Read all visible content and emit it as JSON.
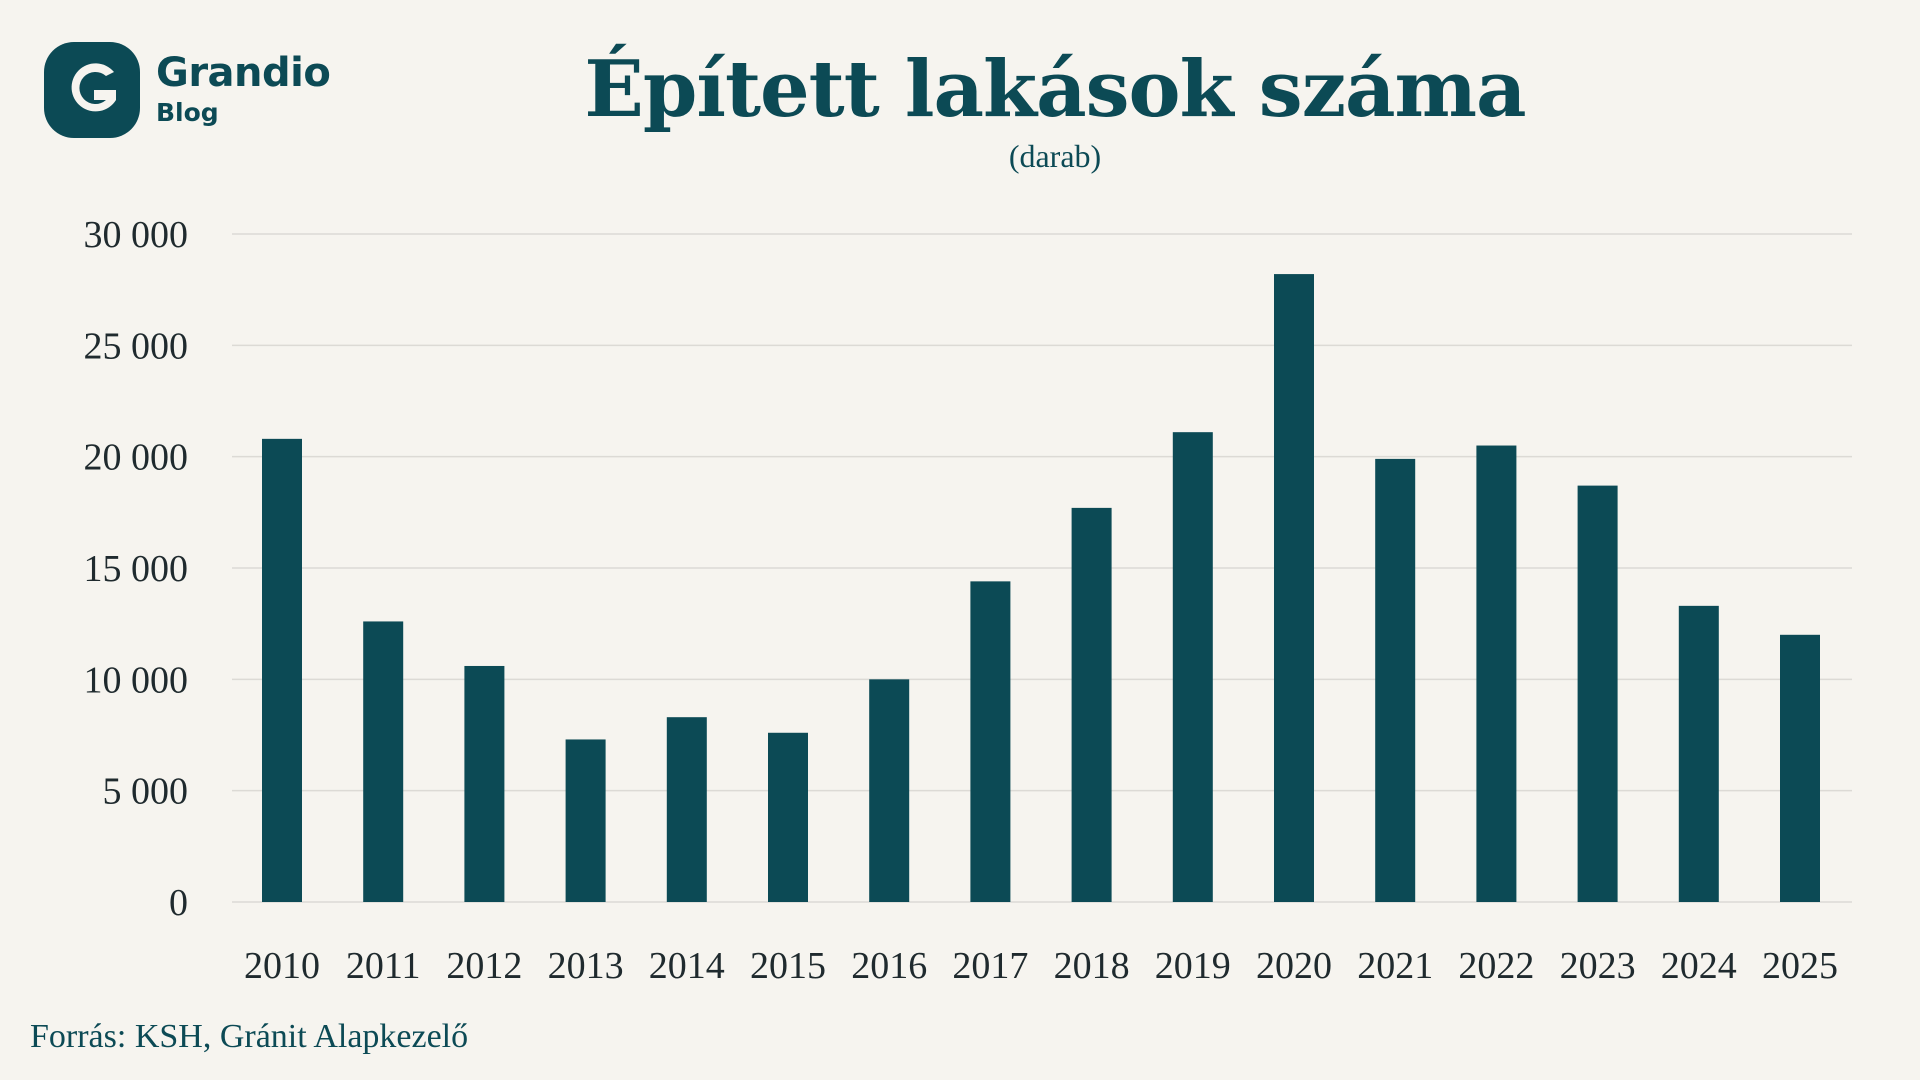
{
  "brand": {
    "name": "Grandio",
    "sub": "Blog",
    "color": "#0c4a55"
  },
  "chart_data": {
    "type": "bar",
    "title": "Épített lakások száma",
    "subtitle": "(darab)",
    "xlabel": "",
    "ylabel": "",
    "categories": [
      "2010",
      "2011",
      "2012",
      "2013",
      "2014",
      "2015",
      "2016",
      "2017",
      "2018",
      "2019",
      "2020",
      "2021",
      "2022",
      "2023",
      "2024",
      "2025"
    ],
    "values": [
      20800,
      12600,
      10600,
      7300,
      8300,
      7600,
      10000,
      14400,
      17700,
      21100,
      28200,
      19900,
      20500,
      18700,
      13300,
      12000
    ],
    "ylim": [
      0,
      30000
    ],
    "yticks": [
      0,
      5000,
      10000,
      15000,
      20000,
      25000,
      30000
    ],
    "ytick_labels": [
      "0",
      "5 000",
      "10 000",
      "15 000",
      "20 000",
      "25 000",
      "30 000"
    ],
    "grid": true,
    "legend": "none",
    "bar_color": "#0c4a55",
    "grid_color": "#dcdad5"
  },
  "source": "Forrás: KSH, Gránit Alapkezelő"
}
